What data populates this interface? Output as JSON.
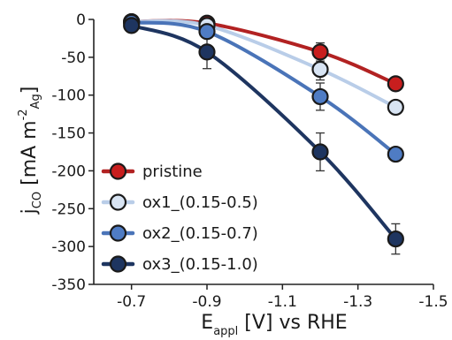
{
  "chart_data": {
    "type": "line",
    "x": [
      -0.7,
      -0.9,
      -1.2,
      -1.4
    ],
    "xlabel": {
      "main": "E",
      "sub": "appl",
      "rest": " [V] vs RHE"
    },
    "ylabel": {
      "main": "j",
      "sub1": "CO",
      "rest": " [mA m",
      "sup": "-2",
      "sub2": "Ag",
      "close": "]"
    },
    "xlim": [
      -0.6,
      -1.5
    ],
    "ylim": [
      -350,
      0
    ],
    "xticks": [
      -0.7,
      -0.9,
      -1.1,
      -1.3,
      -1.5
    ],
    "xtick_labels": [
      "-0.7",
      "-0.9",
      "-1.1",
      "-1.3",
      "-1.5"
    ],
    "yticks": [
      0,
      -50,
      -100,
      -150,
      -200,
      -250,
      -300,
      -350
    ],
    "ytick_labels": [
      "0",
      "-50",
      "-100",
      "-150",
      "-200",
      "-250",
      "-300",
      "-350"
    ],
    "legend_position": "bottom-left",
    "series": [
      {
        "name": "pristine",
        "color": "#b22222",
        "marker": "#c81e1e",
        "values": [
          -3,
          -5,
          -43,
          -85
        ],
        "errors": [
          2,
          4,
          12,
          6
        ]
      },
      {
        "name": "ox1_(0.15-0.5)",
        "color": "#b9cde8",
        "marker": "#d8e4f3",
        "values": [
          -3,
          -8,
          -66,
          -116
        ],
        "errors": [
          2,
          4,
          14,
          6
        ]
      },
      {
        "name": "ox2_(0.15-0.7)",
        "color": "#4a74b8",
        "marker": "#4f7cc4",
        "values": [
          -4,
          -16,
          -102,
          -178
        ],
        "errors": [
          2,
          6,
          18,
          8
        ]
      },
      {
        "name": "ox3_(0.15-1.0)",
        "color": "#1e3560",
        "marker": "#1e3560",
        "values": [
          -8,
          -43,
          -175,
          -290
        ],
        "errors": [
          3,
          22,
          25,
          20
        ]
      }
    ]
  }
}
